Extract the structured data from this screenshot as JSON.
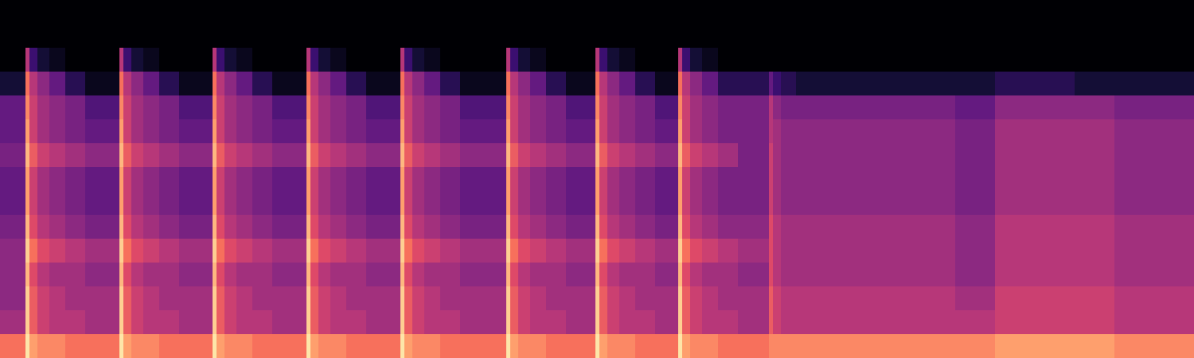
{
  "chart_data": {
    "type": "heatmap",
    "color": "magma",
    "grid": false,
    "tick_labels": false,
    "xlim": [
      0,
      1500
    ],
    "ylim": [
      0,
      15
    ],
    "zlim": [
      0,
      10
    ],
    "x": [
      0,
      32,
      37,
      47,
      62,
      82,
      107,
      150,
      155,
      165,
      180,
      200,
      225,
      267,
      272,
      282,
      297,
      317,
      342,
      385,
      390,
      400,
      415,
      435,
      460,
      503,
      508,
      518,
      533,
      553,
      578,
      636,
      641,
      651,
      666,
      686,
      711,
      748,
      753,
      763,
      778,
      798,
      823,
      852,
      857,
      867,
      882,
      902,
      927,
      966,
      971,
      981,
      1000,
      1050,
      1100,
      1150,
      1200,
      1250,
      1300,
      1350,
      1400,
      1450,
      1500
    ],
    "y": [
      0,
      1,
      2,
      3,
      4,
      5,
      6,
      7,
      8,
      9,
      10,
      11,
      12,
      13,
      14,
      15
    ],
    "cells": [
      [
        7,
        9.5,
        8,
        7.5,
        7.5,
        7,
        7,
        9.5,
        8,
        7.5,
        7.5,
        7,
        7,
        9.5,
        8,
        7.5,
        7.5,
        7,
        7,
        9.5,
        8,
        7.5,
        7.5,
        7,
        7,
        9.5,
        8,
        7.5,
        7.5,
        7,
        7,
        9.5,
        8,
        7.5,
        7.5,
        7,
        7,
        9.5,
        8,
        7.5,
        7.5,
        7,
        7,
        9.5,
        8,
        7.5,
        7.5,
        7,
        7,
        7.5,
        7.5,
        7.5,
        7.5,
        7.5,
        7.5,
        7.5,
        7.5,
        8,
        8,
        8,
        7.5,
        7.5
      ],
      [
        4.5,
        9,
        6.5,
        5.5,
        5,
        5,
        4.5,
        9,
        6.5,
        5.5,
        5,
        5,
        4.5,
        9,
        6.5,
        5.5,
        5,
        5,
        4.5,
        9,
        6.5,
        5.5,
        5,
        5,
        4.5,
        9,
        6.5,
        5.5,
        5,
        5,
        4.5,
        9,
        6.5,
        5.5,
        5,
        5,
        4.5,
        9,
        6.5,
        5.5,
        5,
        5,
        4.5,
        9,
        6.5,
        5.5,
        5,
        5,
        4.5,
        6.5,
        5.5,
        5,
        5,
        5,
        5,
        5,
        5,
        5.5,
        5.5,
        5.5,
        5,
        5
      ],
      [
        4,
        9,
        6.5,
        5.5,
        5,
        4.5,
        4.5,
        9,
        6.5,
        5.5,
        5,
        4.5,
        4.5,
        9,
        6.5,
        5.5,
        5,
        4.5,
        4.5,
        9,
        6.5,
        5.5,
        5,
        4.5,
        4.5,
        9,
        6.5,
        5.5,
        5,
        4.5,
        4.5,
        9,
        6.5,
        5.5,
        5,
        4.5,
        4.5,
        9,
        6.5,
        5.5,
        5,
        4.5,
        4.5,
        9,
        6.5,
        5.5,
        5,
        4.5,
        4.5,
        6.5,
        5.5,
        5,
        5,
        5,
        5,
        5,
        4.5,
        5.5,
        5.5,
        5.5,
        5,
        5
      ],
      [
        4,
        8.5,
        6,
        5,
        4.5,
        4.5,
        4,
        8.5,
        6,
        5,
        4.5,
        4.5,
        4,
        8.5,
        6,
        5,
        4.5,
        4.5,
        4,
        8.5,
        6,
        5,
        4.5,
        4.5,
        4,
        8.5,
        6,
        5,
        4.5,
        4.5,
        4,
        8.5,
        6,
        5,
        4.5,
        4.5,
        4,
        8.5,
        6,
        5,
        4.5,
        4.5,
        4,
        8.5,
        6,
        5,
        4.5,
        4.5,
        4,
        6,
        5,
        4.5,
        4.5,
        4.5,
        4.5,
        4.5,
        4,
        5,
        5,
        5,
        4.5,
        4.5
      ],
      [
        4,
        9,
        7,
        6,
        5.5,
        5,
        4.5,
        9,
        7,
        6,
        5.5,
        5,
        4.5,
        9,
        7,
        6,
        5.5,
        5,
        4.5,
        9,
        7,
        6,
        5.5,
        5,
        4.5,
        9,
        7,
        6,
        5.5,
        5,
        4.5,
        9,
        7,
        6,
        5.5,
        5,
        4.5,
        9,
        7,
        6,
        5.5,
        5,
        4.5,
        9,
        7,
        6,
        5.5,
        5,
        4.5,
        6,
        5,
        4.5,
        4.5,
        4.5,
        4.5,
        4.5,
        4,
        5,
        5,
        5,
        4.5,
        4.5
      ],
      [
        3.5,
        8.5,
        6,
        5,
        4.5,
        4,
        3.5,
        8.5,
        6,
        5,
        4.5,
        4,
        3.5,
        8.5,
        6,
        5,
        4.5,
        4,
        3.5,
        8.5,
        6,
        5,
        4.5,
        4,
        3.5,
        8.5,
        6,
        5,
        4.5,
        4,
        3.5,
        8.5,
        6,
        5,
        4.5,
        4,
        3.5,
        8.5,
        6,
        5,
        4.5,
        4,
        3.5,
        8.5,
        6,
        5,
        4.5,
        4,
        4,
        6,
        5,
        4.5,
        4.5,
        4.5,
        4.5,
        4.5,
        4,
        5,
        5,
        5,
        4.5,
        4.5
      ],
      [
        3,
        8,
        5.5,
        4.5,
        4,
        3.5,
        3,
        8,
        5.5,
        4.5,
        4,
        3.5,
        3,
        8,
        5.5,
        4.5,
        4,
        3.5,
        3,
        8,
        5.5,
        4.5,
        4,
        3.5,
        3,
        8,
        5.5,
        4.5,
        4,
        3.5,
        3,
        8,
        5.5,
        4.5,
        4,
        3.5,
        3,
        8,
        5.5,
        4.5,
        4,
        3.5,
        3,
        8,
        5.5,
        4.5,
        4,
        3.5,
        3.5,
        5.5,
        4.5,
        4,
        4,
        4,
        4,
        4,
        3.5,
        4.5,
        4.5,
        4.5,
        4,
        4
      ],
      [
        3,
        8,
        5.5,
        4.5,
        4,
        3.5,
        3,
        8,
        5.5,
        4.5,
        4,
        3.5,
        3,
        8,
        5.5,
        4.5,
        4,
        3.5,
        3,
        8,
        5.5,
        4.5,
        4,
        3.5,
        3,
        8,
        5.5,
        4.5,
        4,
        3.5,
        3,
        8,
        5.5,
        4.5,
        4,
        3.5,
        3,
        8,
        5.5,
        4.5,
        4,
        3.5,
        3,
        8,
        5.5,
        4.5,
        4,
        3.5,
        3.5,
        5.5,
        4.5,
        4,
        4,
        4,
        4,
        4,
        3.5,
        4.5,
        4.5,
        4.5,
        4,
        4
      ],
      [
        3.5,
        8.5,
        6.5,
        5.5,
        5,
        4.5,
        4,
        8.5,
        6.5,
        5.5,
        5,
        4.5,
        4,
        8.5,
        6.5,
        5.5,
        5,
        4.5,
        4,
        8.5,
        6.5,
        5.5,
        5,
        4.5,
        4,
        8.5,
        6.5,
        5.5,
        5,
        4.5,
        4,
        8.5,
        6.5,
        5.5,
        5,
        4.5,
        4,
        8.5,
        6.5,
        5.5,
        5,
        4.5,
        4,
        8.5,
        6.5,
        5.5,
        5,
        4.5,
        3.5,
        5.5,
        4.5,
        4,
        4,
        4,
        4,
        4,
        3.5,
        4.5,
        4.5,
        4.5,
        4,
        4
      ],
      [
        3,
        8,
        5.5,
        4.5,
        4,
        3.5,
        3,
        8,
        5.5,
        4.5,
        4,
        3.5,
        3,
        8,
        5.5,
        4.5,
        4,
        3.5,
        3,
        8,
        5.5,
        4.5,
        4,
        3.5,
        3,
        8,
        5.5,
        4.5,
        4,
        3.5,
        3,
        8,
        5.5,
        4.5,
        4,
        3.5,
        3,
        8,
        5.5,
        4.5,
        4,
        3.5,
        3,
        8,
        5.5,
        4.5,
        4,
        3.5,
        3.5,
        5,
        4.5,
        4,
        4,
        4,
        4,
        4,
        3.5,
        4.5,
        4.5,
        4.5,
        4,
        4
      ],
      [
        3,
        7.5,
        5.5,
        4.5,
        4,
        3.5,
        2.5,
        7.5,
        5.5,
        4.5,
        4,
        3.5,
        2.5,
        7.5,
        5.5,
        4.5,
        4,
        3.5,
        2.5,
        7.5,
        5.5,
        4.5,
        4,
        3.5,
        2.5,
        7.5,
        5.5,
        4.5,
        4,
        3.5,
        2.5,
        7.5,
        5.5,
        4.5,
        4,
        3.5,
        2.5,
        7.5,
        5.5,
        4.5,
        4,
        3.5,
        2.5,
        7.5,
        5.5,
        4.5,
        4,
        3.5,
        3.5,
        5,
        4,
        3.5,
        3.5,
        3.5,
        3.5,
        3.5,
        3,
        4,
        4,
        4,
        3.5,
        3.5
      ],
      [
        1,
        7,
        5,
        4,
        3,
        1.5,
        0.5,
        7,
        5,
        4,
        3,
        1.5,
        0.5,
        7,
        5,
        4,
        3,
        1.5,
        0.5,
        7,
        5,
        4,
        3,
        1.5,
        0.5,
        7,
        5,
        4,
        3,
        1.5,
        0.5,
        7,
        5,
        4,
        3,
        1.5,
        0.5,
        7,
        5,
        4,
        3,
        1.5,
        0.5,
        7,
        5,
        4,
        3,
        1.5,
        1.5,
        3,
        2,
        1.5,
        1,
        1,
        1,
        1,
        1,
        1.5,
        1.5,
        1,
        1,
        1
      ],
      [
        0,
        5,
        2,
        1,
        0.5,
        0,
        0,
        5,
        2,
        1,
        0.5,
        0,
        0,
        5,
        2,
        1,
        0.5,
        0,
        0,
        5,
        2,
        1,
        0.5,
        0,
        0,
        5,
        2,
        1,
        0.5,
        0,
        0,
        5,
        2,
        1,
        0.5,
        0,
        0,
        5,
        2,
        1,
        0.5,
        0,
        0,
        5,
        2,
        1,
        0.5,
        0,
        0,
        0,
        0,
        0,
        0,
        0,
        0,
        0,
        0,
        0,
        0,
        0,
        0,
        0
      ],
      [
        0,
        0,
        0,
        0,
        0,
        0,
        0,
        0,
        0,
        0,
        0,
        0,
        0,
        0,
        0,
        0,
        0,
        0,
        0,
        0,
        0,
        0,
        0,
        0,
        0,
        0,
        0,
        0,
        0,
        0,
        0,
        0,
        0,
        0,
        0,
        0,
        0,
        0,
        0,
        0,
        0,
        0,
        0,
        0,
        0,
        0,
        0,
        0,
        0,
        0,
        0,
        0,
        0,
        0,
        0,
        0,
        0,
        0,
        0,
        0,
        0,
        0
      ],
      [
        0,
        0,
        0,
        0,
        0,
        0,
        0,
        0,
        0,
        0,
        0,
        0,
        0,
        0,
        0,
        0,
        0,
        0,
        0,
        0,
        0,
        0,
        0,
        0,
        0,
        0,
        0,
        0,
        0,
        0,
        0,
        0,
        0,
        0,
        0,
        0,
        0,
        0,
        0,
        0,
        0,
        0,
        0,
        0,
        0,
        0,
        0,
        0,
        0,
        0,
        0,
        0,
        0,
        0,
        0,
        0,
        0,
        0,
        0,
        0,
        0,
        0
      ]
    ]
  }
}
